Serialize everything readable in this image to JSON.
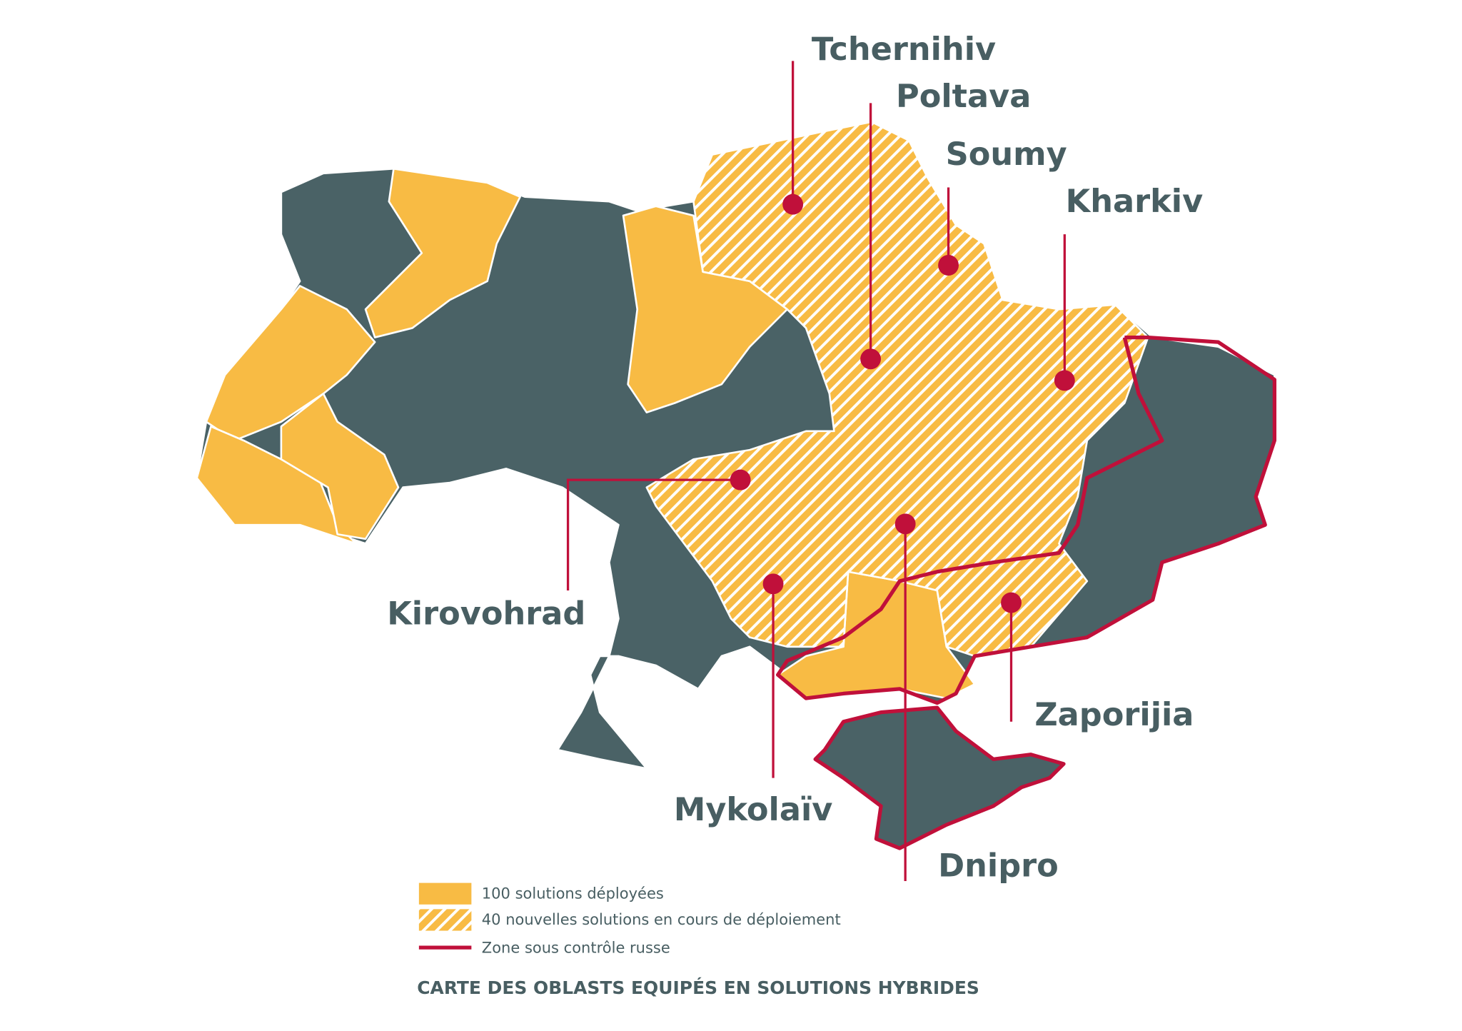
{
  "cities": [
    {
      "label": "Tchernihiv"
    },
    {
      "label": "Poltava"
    },
    {
      "label": "Soumy"
    },
    {
      "label": "Kharkiv"
    },
    {
      "label": "Kirovohrad"
    },
    {
      "label": "Mykolaïv"
    },
    {
      "label": "Dnipro"
    },
    {
      "label": "Zaporijia"
    }
  ],
  "legend": [
    {
      "label": "100 solutions déployées"
    },
    {
      "label": "40 nouvelles solutions en cours de déploiement"
    },
    {
      "label": "Zone sous contrôle russe"
    }
  ],
  "caption": "CARTE DES OBLASTS EQUIPÉS EN SOLUTIONS HYBRIDES"
}
